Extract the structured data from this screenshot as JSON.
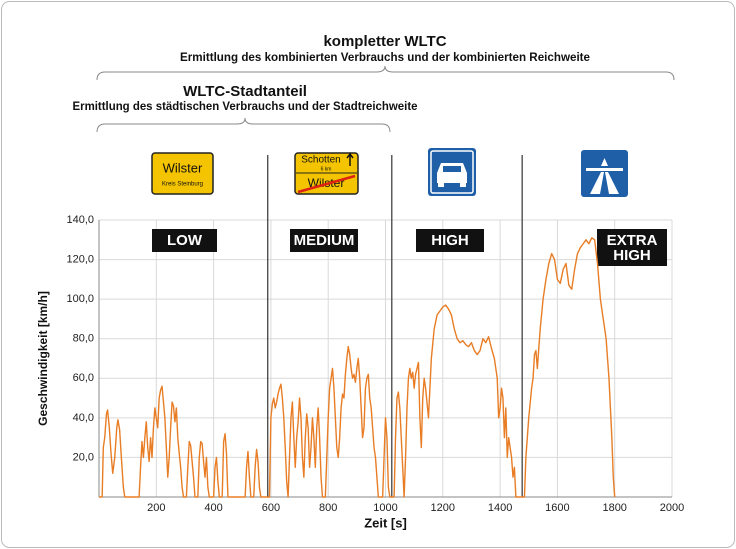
{
  "chart_data": {
    "type": "line",
    "annotations": {
      "combined_title": "kompletter WLTC",
      "combined_subtitle": "Ermittlung des kombinierten Verbrauchs und der kombinierten Reichweite",
      "city_title": "WLTC-Stadtanteil",
      "city_subtitle": "Ermittlung des städtischen Verbrauchs und der Stadtreichweite"
    },
    "x_label": "Zeit [s]",
    "y_label": "Geschwindigkeit [km/h]",
    "color": "#e87d25",
    "xlim": [
      0,
      2000
    ],
    "ylim": [
      0,
      140
    ],
    "xticks": [
      200,
      400,
      600,
      800,
      1000,
      1200,
      1400,
      1600,
      1800,
      2000
    ],
    "yticks": [
      {
        "value": 20,
        "label": "20,0"
      },
      {
        "value": 40,
        "label": "40,0"
      },
      {
        "value": 60,
        "label": "60,0"
      },
      {
        "value": 80,
        "label": "80,0"
      },
      {
        "value": 100,
        "label": "100,0"
      },
      {
        "value": 120,
        "label": "120,0"
      },
      {
        "value": 140,
        "label": "140,0"
      }
    ],
    "grid": true,
    "phase_boundaries": [
      589,
      1022,
      1477
    ],
    "phase_labels": [
      [
        "LOW"
      ],
      [
        "MEDIUM"
      ],
      [
        "HIGH"
      ],
      [
        "EXTRA",
        "HIGH"
      ]
    ],
    "x": [
      0,
      11,
      15,
      20,
      26,
      30,
      36,
      42,
      48,
      55,
      62,
      66,
      72,
      78,
      85,
      90,
      140,
      145,
      150,
      155,
      160,
      165,
      170,
      175,
      180,
      185,
      190,
      195,
      200,
      205,
      210,
      215,
      220,
      225,
      230,
      235,
      240,
      245,
      250,
      255,
      260,
      265,
      270,
      275,
      280,
      285,
      290,
      295,
      305,
      310,
      315,
      320,
      325,
      330,
      335,
      345,
      350,
      355,
      360,
      365,
      370,
      375,
      380,
      385,
      400,
      405,
      410,
      415,
      420,
      430,
      435,
      440,
      445,
      450,
      510,
      515,
      520,
      525,
      530,
      540,
      545,
      550,
      555,
      560,
      565,
      589,
      595,
      600,
      605,
      610,
      615,
      620,
      625,
      630,
      635,
      640,
      645,
      650,
      655,
      660,
      665,
      670,
      675,
      680,
      685,
      690,
      695,
      700,
      705,
      710,
      715,
      720,
      725,
      730,
      735,
      740,
      745,
      750,
      755,
      760,
      765,
      770,
      775,
      780,
      790,
      795,
      800,
      805,
      810,
      815,
      820,
      825,
      830,
      835,
      840,
      845,
      850,
      855,
      860,
      865,
      870,
      875,
      880,
      885,
      890,
      895,
      900,
      905,
      910,
      915,
      920,
      925,
      930,
      935,
      940,
      945,
      950,
      955,
      960,
      965,
      970,
      975,
      990,
      995,
      1000,
      1005,
      1010,
      1015,
      1022,
      1030,
      1035,
      1040,
      1045,
      1050,
      1055,
      1060,
      1065,
      1070,
      1075,
      1080,
      1085,
      1090,
      1095,
      1100,
      1105,
      1110,
      1115,
      1120,
      1125,
      1130,
      1135,
      1140,
      1150,
      1160,
      1170,
      1180,
      1190,
      1200,
      1210,
      1220,
      1230,
      1240,
      1250,
      1260,
      1270,
      1280,
      1290,
      1300,
      1310,
      1320,
      1330,
      1340,
      1350,
      1360,
      1370,
      1380,
      1390,
      1395,
      1400,
      1405,
      1410,
      1415,
      1420,
      1425,
      1430,
      1440,
      1445,
      1450,
      1455,
      1477,
      1485,
      1490,
      1500,
      1510,
      1515,
      1520,
      1525,
      1530,
      1540,
      1550,
      1560,
      1570,
      1580,
      1590,
      1600,
      1610,
      1620,
      1630,
      1640,
      1650,
      1660,
      1670,
      1680,
      1690,
      1700,
      1710,
      1720,
      1730,
      1740,
      1750,
      1760,
      1770,
      1780,
      1790,
      1795,
      1800
    ],
    "values": [
      0,
      0,
      25,
      30,
      42,
      44,
      35,
      22,
      12,
      20,
      35,
      39,
      34,
      20,
      5,
      0,
      0,
      15,
      28,
      20,
      30,
      38,
      25,
      18,
      30,
      20,
      35,
      45,
      40,
      35,
      50,
      54,
      56,
      48,
      40,
      25,
      10,
      20,
      35,
      48,
      46,
      38,
      45,
      30,
      22,
      15,
      5,
      0,
      0,
      15,
      28,
      26,
      18,
      10,
      0,
      0,
      20,
      28,
      27,
      18,
      10,
      20,
      5,
      0,
      0,
      15,
      20,
      8,
      0,
      0,
      28,
      32,
      22,
      0,
      0,
      15,
      23,
      10,
      0,
      0,
      15,
      24,
      18,
      5,
      0,
      0,
      0,
      40,
      47,
      50,
      45,
      48,
      52,
      55,
      57,
      50,
      40,
      25,
      8,
      0,
      20,
      40,
      48,
      30,
      15,
      30,
      38,
      50,
      40,
      20,
      10,
      30,
      42,
      35,
      15,
      25,
      40,
      30,
      15,
      35,
      45,
      30,
      10,
      0,
      0,
      20,
      40,
      55,
      60,
      65,
      55,
      40,
      25,
      20,
      30,
      45,
      52,
      50,
      62,
      70,
      76,
      72,
      65,
      60,
      62,
      58,
      65,
      70,
      60,
      45,
      30,
      35,
      55,
      60,
      62,
      50,
      45,
      35,
      25,
      20,
      10,
      0,
      0,
      20,
      40,
      30,
      5,
      0,
      0,
      0,
      30,
      50,
      53,
      45,
      30,
      15,
      0,
      20,
      45,
      60,
      65,
      60,
      63,
      55,
      62,
      65,
      68,
      40,
      25,
      50,
      60,
      55,
      40,
      70,
      85,
      92,
      94,
      96,
      97,
      95,
      92,
      85,
      80,
      78,
      79,
      77,
      76,
      78,
      74,
      72,
      74,
      80,
      78,
      81,
      75,
      70,
      60,
      40,
      45,
      55,
      50,
      30,
      45,
      20,
      30,
      20,
      10,
      15,
      0,
      0,
      0,
      20,
      40,
      55,
      60,
      72,
      74,
      65,
      85,
      100,
      110,
      118,
      123,
      120,
      110,
      108,
      115,
      118,
      107,
      105,
      115,
      123,
      126,
      128,
      130,
      128,
      131,
      130,
      118,
      100,
      90,
      80,
      60,
      30,
      10,
      0
    ]
  },
  "signs": {
    "town_sign": {
      "name": "Wilster",
      "district": "Kreis Steinburg"
    },
    "exit_sign": {
      "next_town": "Schotten",
      "distance": "6 km",
      "town": "Wilster"
    }
  }
}
